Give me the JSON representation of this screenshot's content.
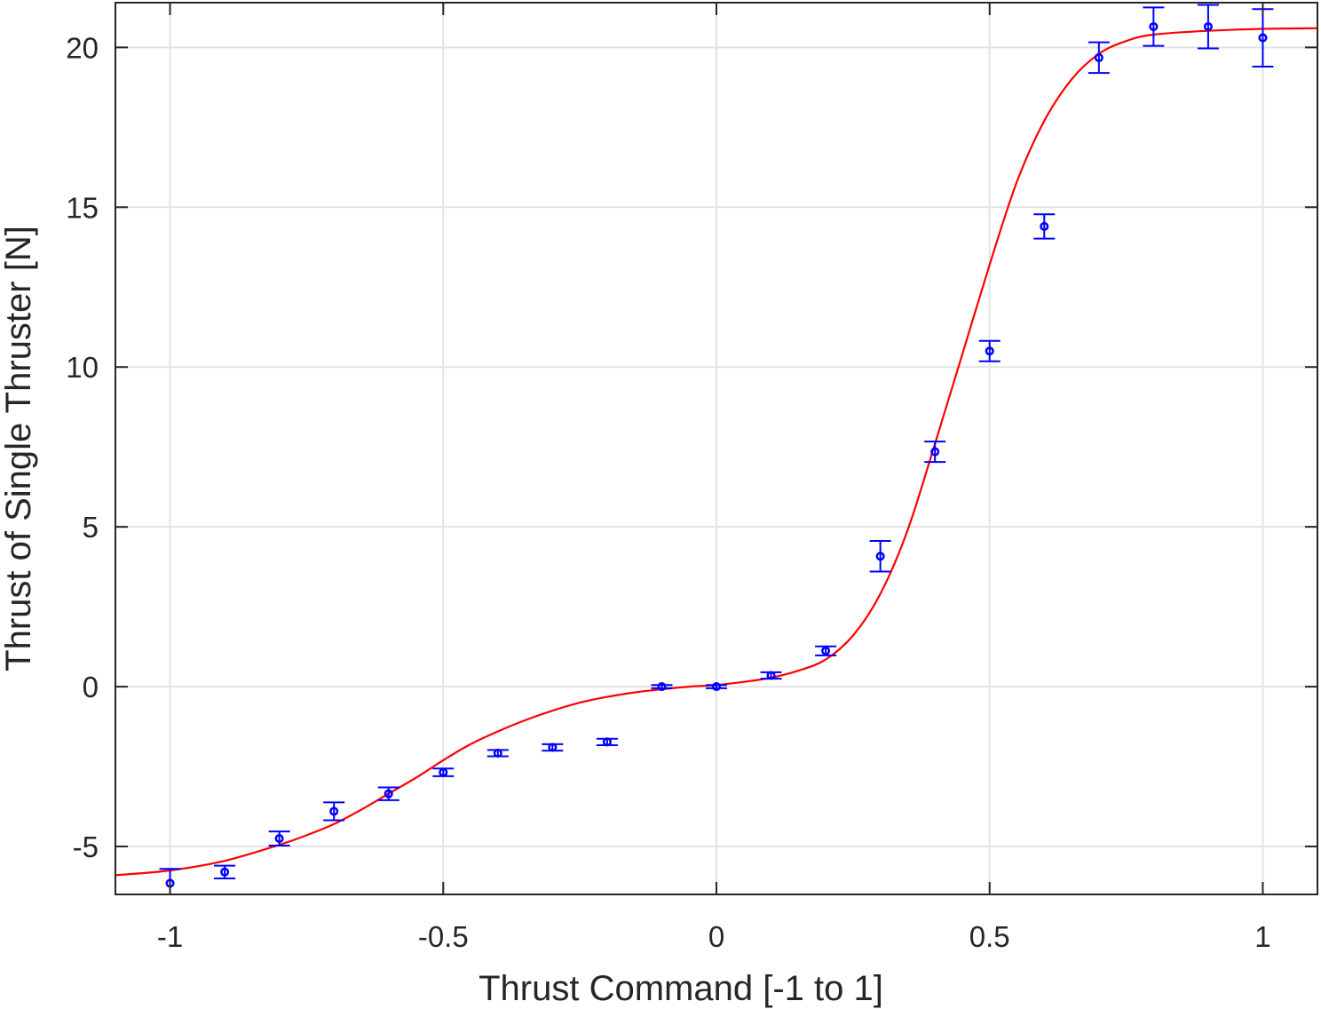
{
  "chart_data": {
    "type": "scatter",
    "title": "",
    "xlabel": "Thrust Command [-1 to 1]",
    "ylabel": "Thrust of Single Thruster [N]",
    "xlim": [
      -1.1,
      1.1
    ],
    "ylim": [
      -6.5,
      21.4
    ],
    "grid": true,
    "legend": "none",
    "x_ticks": [
      {
        "value": -1,
        "label": "-1"
      },
      {
        "value": -0.5,
        "label": "-0.5"
      },
      {
        "value": 0,
        "label": "0"
      },
      {
        "value": 0.5,
        "label": "0.5"
      },
      {
        "value": 1,
        "label": "1"
      }
    ],
    "y_ticks": [
      {
        "value": -5,
        "label": "-5"
      },
      {
        "value": 0,
        "label": "0"
      },
      {
        "value": 5,
        "label": "5"
      },
      {
        "value": 10,
        "label": "10"
      },
      {
        "value": 15,
        "label": "15"
      },
      {
        "value": 20,
        "label": "20"
      }
    ],
    "measurements": {
      "color": "#0000ff",
      "points": [
        {
          "x": -1.0,
          "y": -6.15,
          "err": 0.45
        },
        {
          "x": -0.9,
          "y": -5.8,
          "err": 0.2
        },
        {
          "x": -0.8,
          "y": -4.75,
          "err": 0.22
        },
        {
          "x": -0.7,
          "y": -3.9,
          "err": 0.28
        },
        {
          "x": -0.6,
          "y": -3.35,
          "err": 0.2
        },
        {
          "x": -0.5,
          "y": -2.68,
          "err": 0.12
        },
        {
          "x": -0.4,
          "y": -2.08,
          "err": 0.1
        },
        {
          "x": -0.3,
          "y": -1.9,
          "err": 0.1
        },
        {
          "x": -0.2,
          "y": -1.73,
          "err": 0.1
        },
        {
          "x": -0.1,
          "y": 0.0,
          "err": 0.05
        },
        {
          "x": 0.0,
          "y": 0.0,
          "err": 0.05
        },
        {
          "x": 0.1,
          "y": 0.35,
          "err": 0.1
        },
        {
          "x": 0.2,
          "y": 1.12,
          "err": 0.14
        },
        {
          "x": 0.3,
          "y": 4.08,
          "err": 0.48
        },
        {
          "x": 0.4,
          "y": 7.35,
          "err": 0.32
        },
        {
          "x": 0.5,
          "y": 10.5,
          "err": 0.32
        },
        {
          "x": 0.6,
          "y": 14.4,
          "err": 0.38
        },
        {
          "x": 0.7,
          "y": 19.68,
          "err": 0.48
        },
        {
          "x": 0.8,
          "y": 20.65,
          "err": 0.6
        },
        {
          "x": 0.9,
          "y": 20.65,
          "err": 0.68
        },
        {
          "x": 1.0,
          "y": 20.3,
          "err": 0.9
        }
      ]
    },
    "fit_curve": {
      "color": "#ff0000",
      "x": [
        -1.1,
        -1.0,
        -0.9,
        -0.8,
        -0.75,
        -0.7,
        -0.65,
        -0.6,
        -0.55,
        -0.5,
        -0.45,
        -0.4,
        -0.35,
        -0.3,
        -0.25,
        -0.2,
        -0.15,
        -0.1,
        -0.05,
        0.0,
        0.05,
        0.1,
        0.15,
        0.2,
        0.25,
        0.3,
        0.35,
        0.4,
        0.45,
        0.5,
        0.55,
        0.6,
        0.65,
        0.7,
        0.75,
        0.8,
        0.9,
        1.0,
        1.1
      ],
      "y": [
        -5.9,
        -5.75,
        -5.45,
        -4.95,
        -4.65,
        -4.3,
        -3.85,
        -3.35,
        -2.85,
        -2.3,
        -1.8,
        -1.4,
        -1.05,
        -0.75,
        -0.5,
        -0.32,
        -0.18,
        -0.08,
        0.0,
        0.05,
        0.15,
        0.28,
        0.5,
        0.85,
        1.6,
        2.9,
        4.9,
        7.6,
        10.4,
        13.2,
        15.8,
        17.7,
        19.0,
        19.8,
        20.2,
        20.4,
        20.52,
        20.58,
        20.6
      ]
    }
  }
}
